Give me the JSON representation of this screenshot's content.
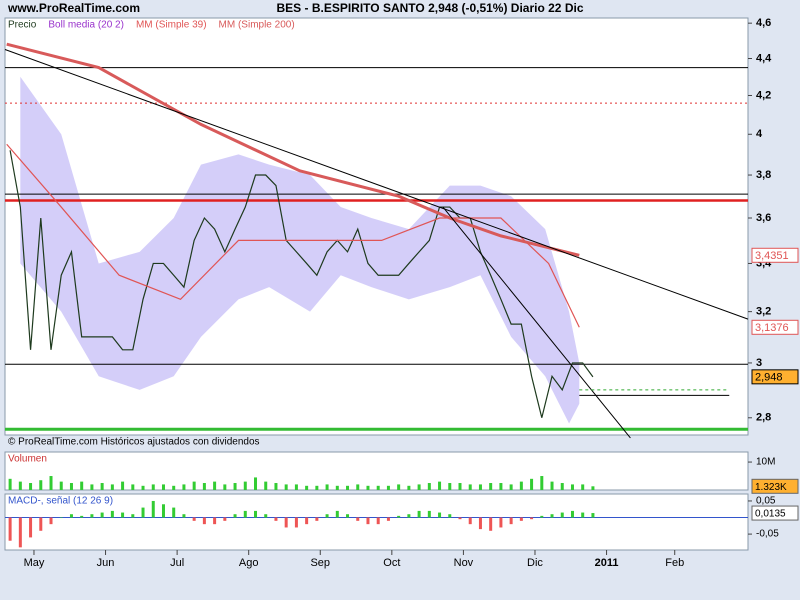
{
  "chart_data": [
    {
      "type": "line",
      "site": "www.ProRealTime.com",
      "title": "BES - B.ESPIRITO SANTO    2,948 (-0,51%)    Diario  22 Dic",
      "footnote": "© ProRealTime.com Históricos ajustados con dividendos",
      "log": true,
      "xlim": [
        -1.5,
        216.5
      ],
      "ylim": [
        2.74,
        4.63
      ],
      "yticks": [
        {
          "value": 4.6,
          "label": "4,6"
        },
        {
          "value": 4.4,
          "label": "4,4"
        },
        {
          "value": 4.2,
          "label": "4,2"
        },
        4,
        {
          "value": 3.8,
          "label": "3,8"
        },
        {
          "value": 3.6,
          "label": "3,6"
        },
        {
          "value": 3.4,
          "label": "3,4"
        },
        {
          "value": 3.2,
          "label": "3,2"
        },
        3,
        {
          "value": 2.8,
          "label": "2,8"
        }
      ],
      "xticks": [
        {
          "value": 7,
          "label": "May"
        },
        {
          "value": 28,
          "label": "Jun"
        },
        {
          "value": 49,
          "label": "Jul"
        },
        {
          "value": 70,
          "label": "Ago"
        },
        {
          "value": 91,
          "label": "Sep"
        },
        {
          "value": 112,
          "label": "Oct"
        },
        {
          "value": 133,
          "label": "Nov"
        },
        {
          "value": 154,
          "label": "Dic"
        },
        {
          "value": 175,
          "label": "2011"
        },
        {
          "value": 195,
          "label": "Feb"
        }
      ],
      "band": {
        "name": "Boll media (20 2)",
        "color": "#9933cc",
        "fill": "#c9c2f7",
        "x": [
          3,
          15,
          26,
          38,
          48,
          56,
          67,
          76,
          88,
          97,
          106,
          117,
          129,
          138,
          147,
          157,
          164,
          167
        ],
        "upper": [
          4.3,
          4.0,
          3.4,
          3.45,
          3.6,
          3.85,
          3.9,
          3.85,
          3.8,
          3.65,
          3.6,
          3.55,
          3.75,
          3.75,
          3.7,
          3.55,
          3.2,
          3.0
        ],
        "lower": [
          3.4,
          3.2,
          2.95,
          2.9,
          2.95,
          3.1,
          3.25,
          3.3,
          3.2,
          3.35,
          3.3,
          3.25,
          3.3,
          3.35,
          3.1,
          2.95,
          2.78,
          2.85
        ]
      },
      "series": [
        {
          "name": "Precio",
          "color": "#1e3a1e",
          "x": [
            0,
            3,
            6,
            9,
            12,
            15,
            18,
            21,
            24,
            27,
            30,
            33,
            36,
            39,
            42,
            45,
            48,
            51,
            54,
            57,
            60,
            63,
            66,
            69,
            72,
            75,
            78,
            81,
            84,
            87,
            90,
            93,
            96,
            99,
            102,
            105,
            108,
            111,
            114,
            117,
            120,
            123,
            126,
            129,
            132,
            135,
            138,
            141,
            144,
            147,
            150,
            153,
            156,
            159,
            162,
            165,
            168,
            171
          ],
          "values": [
            3.92,
            3.65,
            3.05,
            3.6,
            3.05,
            3.35,
            3.45,
            3.1,
            3.1,
            3.1,
            3.1,
            3.05,
            3.05,
            3.25,
            3.4,
            3.4,
            3.35,
            3.3,
            3.5,
            3.6,
            3.55,
            3.45,
            3.55,
            3.65,
            3.8,
            3.8,
            3.75,
            3.5,
            3.45,
            3.4,
            3.35,
            3.45,
            3.5,
            3.45,
            3.55,
            3.4,
            3.35,
            3.35,
            3.35,
            3.4,
            3.45,
            3.5,
            3.65,
            3.65,
            3.6,
            3.6,
            3.45,
            3.35,
            3.25,
            3.15,
            3.15,
            2.95,
            2.8,
            2.95,
            2.9,
            3.0,
            3.0,
            2.948
          ]
        },
        {
          "name": "MM (Simple 39)",
          "color": "#e05555",
          "x": [
            -1,
            15,
            32,
            50,
            67,
            85,
            109,
            126,
            144,
            158,
            167
          ],
          "values": [
            3.95,
            3.65,
            3.35,
            3.25,
            3.5,
            3.5,
            3.5,
            3.6,
            3.6,
            3.4,
            3.1376
          ]
        },
        {
          "name": "MM (Simple 200)",
          "color": "#d85a5a",
          "x": [
            -1,
            26,
            56,
            85,
            114,
            129,
            144,
            167
          ],
          "values": [
            4.48,
            4.35,
            4.05,
            3.82,
            3.7,
            3.6,
            3.52,
            3.4351
          ]
        }
      ],
      "levels": [
        {
          "value": 4.35,
          "color": "#000000"
        },
        {
          "value": 4.16,
          "color": "#e03030",
          "dash": true
        },
        {
          "value": 3.71,
          "color": "#000000"
        },
        {
          "value": 3.68,
          "color": "#e02020",
          "width": 2.5
        },
        {
          "value": 2.995,
          "color": "#000000"
        },
        {
          "value": 2.76,
          "color": "#33bb33",
          "width": 3
        }
      ],
      "trendlines": [
        {
          "x": [
            -1.5,
            216.5
          ],
          "values": [
            4.45,
            3.17
          ],
          "color": "#000000"
        },
        {
          "x": [
            127,
            182
          ],
          "values": [
            3.65,
            2.73
          ],
          "color": "#000000"
        },
        {
          "x": [
            167,
            211
          ],
          "values": [
            2.9,
            2.9
          ],
          "color": "#33aa33",
          "dash": true
        },
        {
          "x": [
            167,
            211
          ],
          "values": [
            2.88,
            2.88
          ],
          "color": "#000000"
        }
      ],
      "price_labels": [
        {
          "value": 3.4351,
          "label": "3,4351",
          "color": "#e05555",
          "bg": "#ffffff"
        },
        {
          "value": 3.1376,
          "label": "3,1376",
          "color": "#e05555",
          "bg": "#ffffff"
        },
        {
          "value": 2.948,
          "label": "2,948",
          "color": "#000000",
          "bg": "#ffb030"
        }
      ]
    },
    {
      "type": "bar",
      "title": "Volumen",
      "color": "#33cc33",
      "ylim": [
        0,
        13600000
      ],
      "yticks": [
        {
          "value": 10000000,
          "label": "10M"
        }
      ],
      "last_label": {
        "value": 1323000,
        "label": "1.323K"
      },
      "values": [
        4000000,
        3000000,
        2500000,
        3500000,
        5000000,
        3000000,
        2500000,
        3000000,
        2000000,
        2500000,
        2000000,
        3000000,
        2000000,
        1500000,
        2000000,
        2000000,
        1500000,
        2000000,
        3000000,
        2500000,
        3000000,
        2000000,
        2500000,
        3000000,
        4500000,
        3000000,
        2500000,
        2000000,
        2000000,
        1500000,
        1500000,
        2000000,
        1500000,
        1500000,
        2000000,
        1500000,
        1500000,
        1500000,
        2000000,
        1500000,
        2000000,
        2500000,
        3000000,
        2500000,
        2500000,
        2000000,
        2000000,
        2500000,
        2500000,
        2000000,
        3000000,
        4000000,
        5000000,
        3000000,
        2500000,
        2000000,
        2000000,
        1323000
      ]
    },
    {
      "type": "bar",
      "title": "MACD-, señal (12 26 9)",
      "color": "#33cc33",
      "neg_color": "#ee5555",
      "ylim": [
        -0.098,
        0.071
      ],
      "yticks": [
        {
          "value": 0.05,
          "label": "0,05"
        },
        {
          "value": -0.05,
          "label": "-0,05"
        }
      ],
      "last_label": {
        "value": 0.0135,
        "label": "0,0135"
      },
      "values": [
        -0.07,
        -0.09,
        -0.06,
        -0.04,
        -0.02,
        0.0,
        0.01,
        0.005,
        0.01,
        0.015,
        0.02,
        0.015,
        0.01,
        0.03,
        0.05,
        0.04,
        0.03,
        0.01,
        -0.01,
        -0.02,
        -0.02,
        -0.01,
        0.01,
        0.02,
        0.02,
        0.01,
        -0.01,
        -0.03,
        -0.03,
        -0.02,
        -0.01,
        0.01,
        0.02,
        0.01,
        -0.01,
        -0.02,
        -0.02,
        -0.01,
        0.005,
        0.01,
        0.02,
        0.02,
        0.015,
        0.01,
        -0.005,
        -0.02,
        -0.035,
        -0.04,
        -0.03,
        -0.02,
        -0.01,
        -0.005,
        0.005,
        0.01,
        0.015,
        0.02,
        0.015,
        0.0135
      ]
    }
  ]
}
